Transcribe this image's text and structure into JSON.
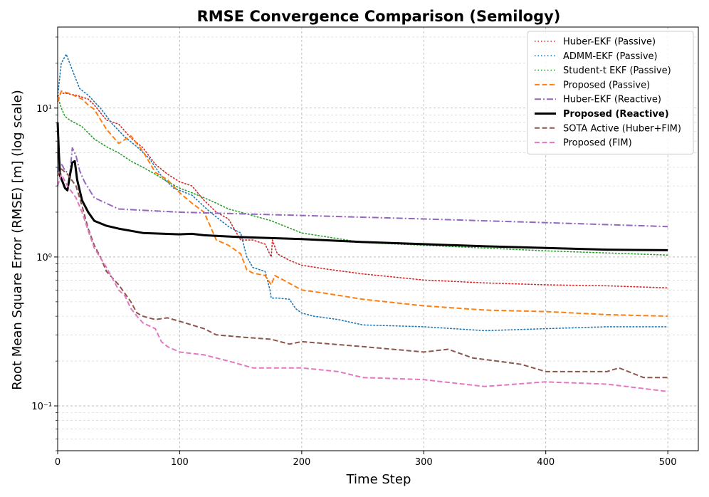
{
  "chart_data": {
    "type": "line",
    "title": "RMSE Convergence Comparison (Semilogy)",
    "xlabel": "Time Step",
    "ylabel": "Root Mean Square Error (RMSE) [m] (log scale)",
    "yscale": "log",
    "xlim": [
      0,
      525
    ],
    "ylim": [
      0.05,
      35
    ],
    "xticks": [
      0,
      100,
      200,
      300,
      400,
      500
    ],
    "xtick_labels": [
      "0",
      "100",
      "200",
      "300",
      "400",
      "500"
    ],
    "yticks": [
      0.1,
      1,
      10
    ],
    "ytick_labels": [
      "10⁻¹",
      "10⁰",
      "10¹"
    ],
    "grid": true,
    "legend_position": "top-right",
    "series": [
      {
        "name": "Huber-EKF (Passive)",
        "color": "#d62728",
        "style": "dotted",
        "width": 1.6,
        "bold": false,
        "x": [
          0,
          3,
          8,
          15,
          25,
          30,
          40,
          50,
          60,
          70,
          80,
          90,
          100,
          110,
          120,
          130,
          140,
          150,
          160,
          170,
          175,
          176,
          180,
          190,
          200,
          220,
          250,
          300,
          350,
          400,
          450,
          500
        ],
        "y": [
          12,
          12.6,
          12.5,
          12.2,
          11.5,
          10.5,
          8.3,
          7.8,
          6.3,
          5.4,
          4.2,
          3.6,
          3.2,
          3.0,
          2.4,
          2.0,
          1.8,
          1.3,
          1.3,
          1.22,
          1.0,
          1.3,
          1.05,
          0.95,
          0.88,
          0.83,
          0.77,
          0.7,
          0.67,
          0.65,
          0.64,
          0.62
        ]
      },
      {
        "name": "ADMM-EKF (Passive)",
        "color": "#1f77b4",
        "style": "dotted",
        "width": 1.6,
        "bold": false,
        "x": [
          0,
          3,
          7,
          12,
          18,
          25,
          35,
          45,
          55,
          65,
          75,
          85,
          95,
          110,
          125,
          140,
          150,
          155,
          160,
          170,
          174,
          175,
          180,
          190,
          195,
          200,
          210,
          230,
          250,
          300,
          350,
          400,
          450,
          500
        ],
        "y": [
          12,
          20,
          23,
          18,
          13.5,
          12.2,
          10,
          7.8,
          6.4,
          5.5,
          4.6,
          3.5,
          2.9,
          2.6,
          2.0,
          1.6,
          1.45,
          1.0,
          0.85,
          0.8,
          0.6,
          0.53,
          0.53,
          0.52,
          0.45,
          0.42,
          0.4,
          0.38,
          0.35,
          0.34,
          0.32,
          0.33,
          0.34,
          0.34
        ]
      },
      {
        "name": "Student-t EKF (Passive)",
        "color": "#2ca02c",
        "style": "dotted",
        "width": 1.6,
        "bold": false,
        "x": [
          0,
          3,
          6,
          10,
          20,
          30,
          40,
          50,
          60,
          70,
          80,
          90,
          100,
          110,
          120,
          130,
          140,
          150,
          175,
          200,
          250,
          300,
          400,
          500
        ],
        "y": [
          12,
          10,
          8.8,
          8.3,
          7.5,
          6.2,
          5.5,
          5.0,
          4.4,
          4.0,
          3.6,
          3.2,
          2.9,
          2.7,
          2.5,
          2.3,
          2.1,
          2.0,
          1.75,
          1.45,
          1.25,
          1.2,
          1.1,
          1.03
        ]
      },
      {
        "name": "Proposed (Passive)",
        "color": "#ff7f0e",
        "style": "dashed",
        "width": 2.0,
        "bold": false,
        "x": [
          0,
          3,
          10,
          20,
          25,
          30,
          40,
          50,
          60,
          70,
          80,
          90,
          100,
          110,
          120,
          130,
          140,
          150,
          155,
          160,
          170,
          175,
          178,
          185,
          200,
          220,
          250,
          300,
          350,
          400,
          450,
          500
        ],
        "y": [
          11,
          13,
          12.5,
          11.5,
          10.5,
          9.8,
          7.2,
          5.8,
          6.5,
          5.1,
          3.7,
          3.3,
          2.7,
          2.3,
          2.0,
          1.3,
          1.2,
          1.05,
          0.82,
          0.78,
          0.75,
          0.65,
          0.75,
          0.7,
          0.6,
          0.57,
          0.52,
          0.47,
          0.44,
          0.43,
          0.41,
          0.4
        ]
      },
      {
        "name": "Huber-EKF (Reactive)",
        "color": "#9467bd",
        "style": "dashdot",
        "width": 2.0,
        "bold": false,
        "x": [
          0,
          2,
          4,
          6,
          10,
          12,
          15,
          18,
          22,
          30,
          50,
          100,
          200,
          300,
          400,
          500
        ],
        "y": [
          3.7,
          4.3,
          4.1,
          3.8,
          3.6,
          5.4,
          4.8,
          3.8,
          3.2,
          2.5,
          2.1,
          2.0,
          1.9,
          1.8,
          1.7,
          1.6
        ]
      },
      {
        "name": "Proposed (Reactive)",
        "color": "#000000",
        "style": "solid",
        "width": 3.0,
        "bold": true,
        "x": [
          0,
          1,
          2,
          4,
          6,
          8,
          10,
          12,
          14,
          16,
          20,
          25,
          30,
          40,
          50,
          70,
          100,
          110,
          120,
          150,
          200,
          250,
          300,
          350,
          400,
          450,
          500
        ],
        "y": [
          8,
          5.0,
          3.5,
          3.2,
          2.9,
          2.8,
          3.5,
          4.3,
          4.4,
          3.3,
          2.4,
          2.0,
          1.75,
          1.62,
          1.55,
          1.45,
          1.42,
          1.43,
          1.4,
          1.36,
          1.32,
          1.26,
          1.22,
          1.18,
          1.15,
          1.12,
          1.11
        ]
      },
      {
        "name": "SOTA Active (Huber+FIM)",
        "color": "#8c564b",
        "style": "dashed",
        "width": 2.0,
        "bold": false,
        "x": [
          0,
          3,
          8,
          15,
          20,
          25,
          30,
          35,
          40,
          50,
          60,
          65,
          70,
          80,
          90,
          100,
          120,
          130,
          150,
          175,
          190,
          200,
          250,
          300,
          320,
          340,
          360,
          380,
          400,
          450,
          460,
          480,
          500
        ],
        "y": [
          3.5,
          3.9,
          3.6,
          3.0,
          2.2,
          1.55,
          1.2,
          1.0,
          0.8,
          0.65,
          0.5,
          0.42,
          0.4,
          0.38,
          0.39,
          0.37,
          0.33,
          0.3,
          0.29,
          0.28,
          0.26,
          0.27,
          0.25,
          0.23,
          0.24,
          0.21,
          0.2,
          0.19,
          0.17,
          0.17,
          0.18,
          0.155,
          0.155
        ]
      },
      {
        "name": "Proposed (FIM)",
        "color": "#e377c2",
        "style": "dashed",
        "width": 2.0,
        "bold": false,
        "x": [
          0,
          3,
          8,
          15,
          20,
          25,
          30,
          40,
          50,
          55,
          60,
          65,
          70,
          80,
          85,
          90,
          100,
          120,
          140,
          160,
          200,
          230,
          250,
          300,
          350,
          400,
          450,
          500
        ],
        "y": [
          3.0,
          3.6,
          3.0,
          2.5,
          2.0,
          1.5,
          1.15,
          0.85,
          0.6,
          0.55,
          0.45,
          0.4,
          0.36,
          0.33,
          0.27,
          0.25,
          0.23,
          0.22,
          0.2,
          0.18,
          0.18,
          0.17,
          0.155,
          0.15,
          0.135,
          0.145,
          0.14,
          0.125
        ]
      }
    ]
  }
}
